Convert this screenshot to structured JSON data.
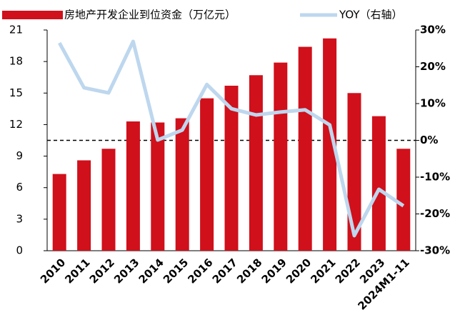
{
  "chart_data": {
    "type": "bar",
    "categories": [
      "2010",
      "2011",
      "2012",
      "2013",
      "2014",
      "2015",
      "2016",
      "2017",
      "2018",
      "2019",
      "2020",
      "2021",
      "2022",
      "2023",
      "2024M1-11"
    ],
    "series": [
      {
        "name": "房地产开发企业到位资金（万亿元）",
        "color": "#d0101b",
        "type": "bar",
        "values": [
          7.3,
          8.6,
          9.7,
          12.3,
          12.2,
          12.6,
          14.5,
          15.7,
          16.7,
          17.9,
          19.4,
          20.2,
          15.0,
          12.8,
          9.7
        ]
      },
      {
        "name": "YOY（右轴）",
        "color": "#bdd7ee",
        "type": "line",
        "axis": "y2",
        "values": [
          26.5,
          14.3,
          12.9,
          26.9,
          0.1,
          2.8,
          15.2,
          8.6,
          6.9,
          7.7,
          8.3,
          4.2,
          -25.9,
          -13.3,
          -17.8
        ]
      }
    ],
    "ylim": [
      0,
      21
    ],
    "yticks": [
      0,
      3,
      6,
      9,
      12,
      15,
      18,
      21
    ],
    "y2lim": [
      -30,
      30
    ],
    "y2ticks": [
      {
        "value": -30,
        "label": "-30%"
      },
      {
        "value": -20,
        "label": "-20%"
      },
      {
        "value": -10,
        "label": "-10%"
      },
      {
        "value": 0,
        "label": "0%"
      },
      {
        "value": 10,
        "label": "10%"
      },
      {
        "value": 20,
        "label": "20%"
      },
      {
        "value": 30,
        "label": "30%"
      }
    ],
    "y2_reference_line": 0,
    "legend": "top"
  }
}
